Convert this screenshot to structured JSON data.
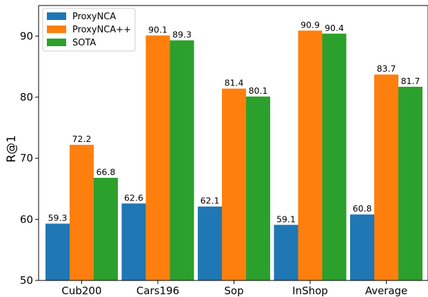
{
  "chart_data": {
    "type": "bar",
    "categories": [
      "Cub200",
      "Cars196",
      "Sop",
      "InShop",
      "Average"
    ],
    "series": [
      {
        "name": "ProxyNCA",
        "color": "#1f77b4",
        "values": [
          59.3,
          62.6,
          62.1,
          59.1,
          60.8
        ]
      },
      {
        "name": "ProxyNCA++",
        "color": "#ff7f0e",
        "values": [
          72.2,
          90.1,
          81.4,
          90.9,
          83.7
        ]
      },
      {
        "name": "SOTA",
        "color": "#2ca02c",
        "values": [
          66.8,
          89.3,
          80.1,
          90.4,
          81.7
        ]
      }
    ],
    "ylabel": "R@1",
    "xlabel": "",
    "ylim": [
      50,
      95
    ],
    "yticks": [
      50,
      60,
      70,
      80,
      90
    ],
    "tick_labels": [
      "50",
      "60",
      "70",
      "80",
      "90"
    ],
    "data_labels": [
      [
        "59.3",
        "62.6",
        "62.1",
        "59.1",
        "60.8"
      ],
      [
        "72.2",
        "90.1",
        "81.4",
        "90.9",
        "83.7"
      ],
      [
        "66.8",
        "89.3",
        "80.1",
        "90.4",
        "81.7"
      ]
    ],
    "grid": false,
    "legend_position": "top-left"
  }
}
